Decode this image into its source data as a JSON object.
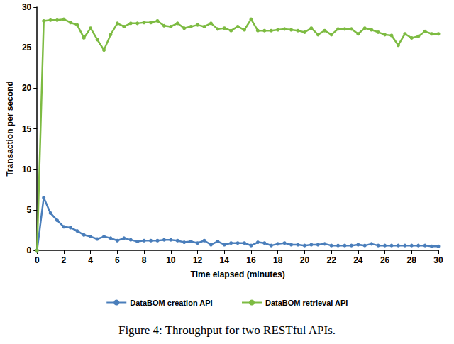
{
  "chart_data": {
    "type": "line",
    "title": "Figure 4: Throughput for two RESTful APIs.",
    "x_label": "Time elapsed (minutes)",
    "y_label": "Transaction per second",
    "x": [
      0,
      0.5,
      1,
      1.5,
      2,
      2.5,
      3,
      3.5,
      4,
      4.5,
      5,
      5.5,
      6,
      6.5,
      7,
      7.5,
      8,
      8.5,
      9,
      9.5,
      10,
      10.5,
      11,
      11.5,
      12,
      12.5,
      13,
      13.5,
      14,
      14.5,
      15,
      15.5,
      16,
      16.5,
      17,
      17.5,
      18,
      18.5,
      19,
      19.5,
      20,
      20.5,
      21,
      21.5,
      22,
      22.5,
      23,
      23.5,
      24,
      24.5,
      25,
      25.5,
      26,
      26.5,
      27,
      27.5,
      28,
      28.5,
      29,
      29.5,
      30
    ],
    "series": [
      {
        "name": "DataBOM creation API",
        "color": "#4a7ebb",
        "marker": "circle",
        "values": [
          0,
          6.5,
          4.6,
          3.7,
          2.9,
          2.8,
          2.4,
          1.9,
          1.7,
          1.4,
          1.7,
          1.5,
          1.2,
          1.5,
          1.3,
          1.1,
          1.2,
          1.2,
          1.2,
          1.3,
          1.3,
          1.2,
          1.0,
          1.1,
          0.9,
          1.2,
          0.7,
          1.1,
          0.7,
          0.9,
          0.9,
          0.9,
          0.6,
          1.0,
          0.9,
          0.6,
          0.8,
          0.9,
          0.7,
          0.7,
          0.6,
          0.7,
          0.7,
          0.8,
          0.6,
          0.6,
          0.6,
          0.6,
          0.7,
          0.6,
          0.8,
          0.6,
          0.6,
          0.6,
          0.6,
          0.6,
          0.6,
          0.6,
          0.6,
          0.5,
          0.5
        ]
      },
      {
        "name": "DataBOM retrieval API",
        "color": "#7dbb42",
        "marker": "circle",
        "values": [
          0,
          28.3,
          28.4,
          28.4,
          28.5,
          28.1,
          27.8,
          26.2,
          27.4,
          26.0,
          24.7,
          26.6,
          28.0,
          27.6,
          28.0,
          28.0,
          28.1,
          28.1,
          28.3,
          27.7,
          27.6,
          28.0,
          27.4,
          27.6,
          27.8,
          27.6,
          28.0,
          27.3,
          27.4,
          27.1,
          27.6,
          27.2,
          28.5,
          27.1,
          27.1,
          27.1,
          27.2,
          27.3,
          27.2,
          27.1,
          26.9,
          27.4,
          26.6,
          27.1,
          26.6,
          27.3,
          27.3,
          27.3,
          26.7,
          27.4,
          27.2,
          26.9,
          26.6,
          26.5,
          25.3,
          26.7,
          26.2,
          26.4,
          27.0,
          26.7,
          26.7
        ]
      }
    ],
    "xlim": [
      0,
      30
    ],
    "xticks": [
      0,
      2,
      4,
      6,
      8,
      10,
      12,
      14,
      16,
      18,
      20,
      22,
      24,
      26,
      28,
      30
    ],
    "ylim": [
      0,
      30
    ],
    "yticks": [
      0,
      5,
      10,
      15,
      20,
      25,
      30
    ],
    "grid": false,
    "legend": "bottom"
  }
}
